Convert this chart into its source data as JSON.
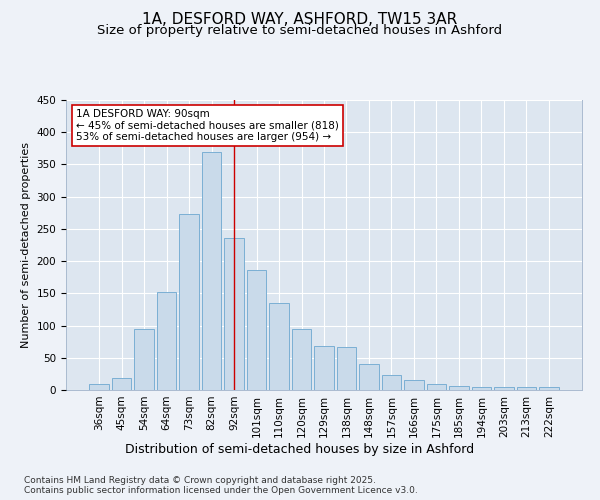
{
  "title": "1A, DESFORD WAY, ASHFORD, TW15 3AR",
  "subtitle": "Size of property relative to semi-detached houses in Ashford",
  "xlabel": "Distribution of semi-detached houses by size in Ashford",
  "ylabel": "Number of semi-detached properties",
  "categories": [
    "36sqm",
    "45sqm",
    "54sqm",
    "64sqm",
    "73sqm",
    "82sqm",
    "92sqm",
    "101sqm",
    "110sqm",
    "120sqm",
    "129sqm",
    "138sqm",
    "148sqm",
    "157sqm",
    "166sqm",
    "175sqm",
    "185sqm",
    "194sqm",
    "203sqm",
    "213sqm",
    "222sqm"
  ],
  "values": [
    10,
    18,
    95,
    152,
    273,
    370,
    236,
    186,
    135,
    95,
    68,
    66,
    40,
    23,
    15,
    10,
    6,
    5,
    5,
    4,
    4
  ],
  "bar_color": "#c9daea",
  "bar_edge_color": "#7bafd4",
  "vline_x_idx": 6,
  "vline_color": "#cc0000",
  "annotation_text": "1A DESFORD WAY: 90sqm\n← 45% of semi-detached houses are smaller (818)\n53% of semi-detached houses are larger (954) →",
  "annotation_box_color": "#ffffff",
  "annotation_box_edge": "#cc0000",
  "ylim": [
    0,
    450
  ],
  "yticks": [
    0,
    50,
    100,
    150,
    200,
    250,
    300,
    350,
    400,
    450
  ],
  "background_color": "#eef2f8",
  "plot_bg_color": "#dde6f0",
  "grid_color": "#ffffff",
  "footer": "Contains HM Land Registry data © Crown copyright and database right 2025.\nContains public sector information licensed under the Open Government Licence v3.0.",
  "title_fontsize": 11,
  "subtitle_fontsize": 9.5,
  "xlabel_fontsize": 9,
  "ylabel_fontsize": 8,
  "tick_fontsize": 7.5,
  "annotation_fontsize": 7.5,
  "footer_fontsize": 6.5
}
